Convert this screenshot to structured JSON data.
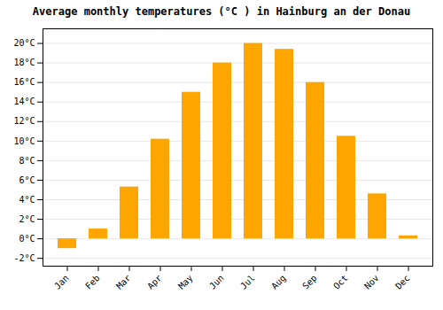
{
  "chart_data": {
    "type": "bar",
    "title": "Average monthly temperatures (°C ) in Hainburg an der Donau",
    "categories": [
      "Jan",
      "Feb",
      "Mar",
      "Apr",
      "May",
      "Jun",
      "Jul",
      "Aug",
      "Sep",
      "Oct",
      "Nov",
      "Dec"
    ],
    "values": [
      -1.0,
      1.0,
      5.3,
      10.2,
      15.0,
      18.0,
      20.0,
      19.4,
      16.0,
      10.5,
      4.6,
      0.3
    ],
    "color": "#FFA500",
    "ylim": [
      -2.8,
      21.5
    ],
    "yticks": [
      {
        "value": -2,
        "label": "-2°C"
      },
      {
        "value": 0,
        "label": "0°C"
      },
      {
        "value": 2,
        "label": "2°C"
      },
      {
        "value": 4,
        "label": "4°C"
      },
      {
        "value": 6,
        "label": "6°C"
      },
      {
        "value": 8,
        "label": "8°C"
      },
      {
        "value": 10,
        "label": "10°C"
      },
      {
        "value": 12,
        "label": "12°C"
      },
      {
        "value": 14,
        "label": "14°C"
      },
      {
        "value": 16,
        "label": "16°C"
      },
      {
        "value": 18,
        "label": "18°C"
      },
      {
        "value": 20,
        "label": "20°C"
      }
    ],
    "grid": true
  }
}
